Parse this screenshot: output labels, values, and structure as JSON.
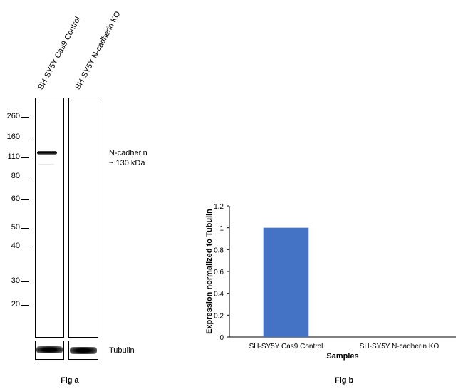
{
  "fig_a": {
    "lanes": [
      "SH-SY5Y Cas9 Control",
      "SH-SY5Y N-cadherin KO"
    ],
    "mw_markers": [
      "260",
      "160",
      "110",
      "80",
      "60",
      "50",
      "40",
      "30",
      "20"
    ],
    "target_label_line1": "N-cadherin",
    "target_label_line2": "~ 130 kDa",
    "loading_control": "Tubulin",
    "caption": "Fig a"
  },
  "fig_b": {
    "caption": "Fig b"
  },
  "chart_data": {
    "type": "bar",
    "categories": [
      "SH-SY5Y Cas9 Control",
      "SH-SY5Y N-cadherin KO"
    ],
    "values": [
      1.0,
      0.0
    ],
    "xlabel": "Samples",
    "ylabel": "Expression normalized to Tubulin",
    "ylim": [
      0,
      1.2
    ],
    "yticks": [
      "0",
      "0.2",
      "0.4",
      "0.6",
      "0.8",
      "1",
      "1.2"
    ],
    "bar_color": "#4472c4",
    "grid": false
  }
}
